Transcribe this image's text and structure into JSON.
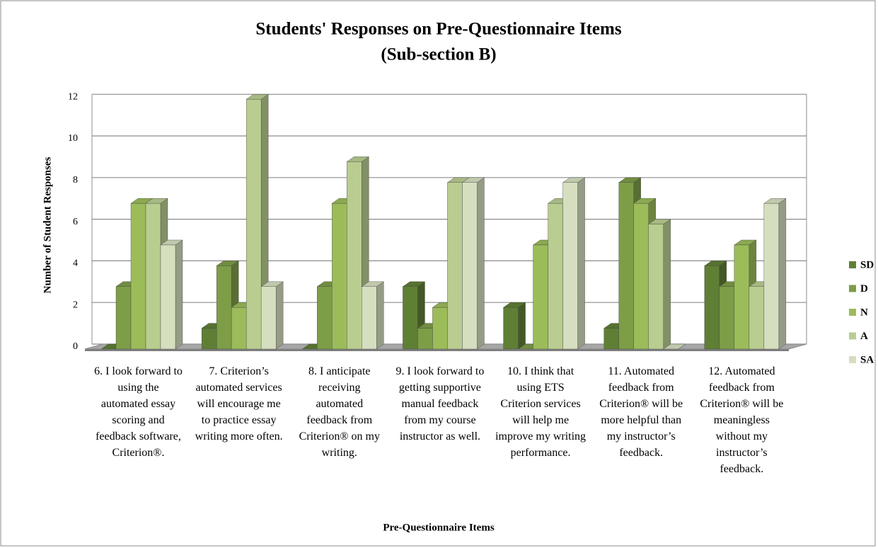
{
  "chart_data": {
    "type": "bar3d",
    "title": "Students' Responses on Pre-Questionnaire Items",
    "subtitle": "(Sub-section B)",
    "y_label": "Number of Student Responses",
    "x_label": "Pre-Questionnaire Items",
    "categories": [
      "6. I look forward to using the automated essay scoring and feedback software, Criterion®.",
      "7. Criterion’s automated services will encourage me to practice essay writing more often.",
      "8. I anticipate receiving automated feedback from Criterion® on my writing.",
      "9. I look forward to getting supportive manual feedback from my course instructor as well.",
      "10. I think that using ETS Criterion services will help me improve my writing performance.",
      "11. Automated feedback from Criterion® will be more helpful than my instructor’s feedback.",
      "12. Automated feedback from Criterion® will be meaningless without my instructor’s feedback."
    ],
    "series": [
      {
        "name": "SD",
        "color": "#5f7f35",
        "values": [
          0,
          1,
          0,
          3,
          2,
          1,
          4
        ]
      },
      {
        "name": "D",
        "color": "#7d9d47",
        "values": [
          3,
          4,
          3,
          1,
          0,
          8,
          3
        ]
      },
      {
        "name": "N",
        "color": "#9cbc5a",
        "values": [
          7,
          2,
          7,
          2,
          5,
          7,
          5
        ]
      },
      {
        "name": "A",
        "color": "#b9cd90",
        "values": [
          7,
          12,
          9,
          8,
          7,
          6,
          3
        ]
      },
      {
        "name": "SA",
        "color": "#d5dfbf",
        "values": [
          5,
          3,
          3,
          8,
          8,
          0,
          7
        ]
      }
    ],
    "ylim": [
      0,
      12
    ],
    "yticks": [
      0,
      2,
      4,
      6,
      8,
      10,
      12
    ],
    "grid": true,
    "legend": "right"
  }
}
